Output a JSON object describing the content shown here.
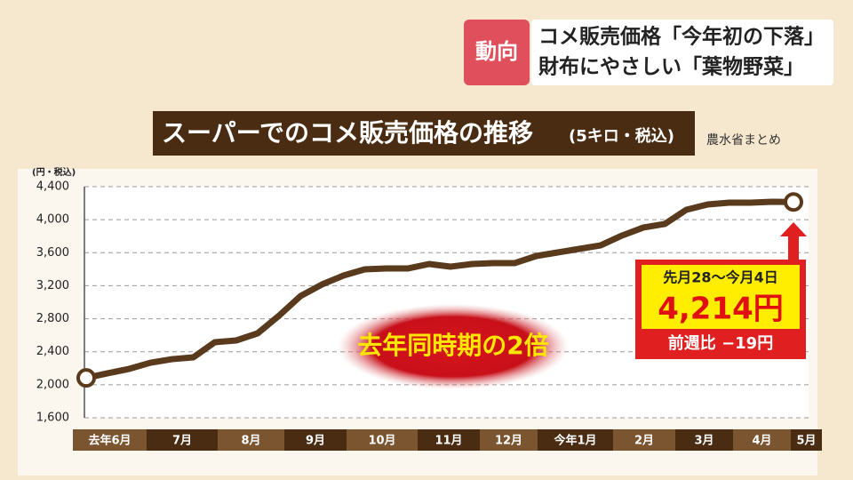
{
  "banner": {
    "tag": "動向",
    "line1": "コメ販売価格「今年初の下落」",
    "line2": "財布にやさしい「葉物野菜」"
  },
  "chart_data": {
    "type": "line",
    "title": "スーパーでのコメ販売価格の推移",
    "title_note": "(5キロ・税込)",
    "source": "農水省まとめ",
    "y_unit": "(円・税込)",
    "months": [
      "去年6月",
      "7月",
      "8月",
      "9月",
      "10月",
      "11月",
      "12月",
      "今年1月",
      "2月",
      "3月",
      "4月",
      "5月"
    ],
    "series": [
      {
        "color": "#5a3a1c",
        "values": [
          2083,
          2139,
          2192,
          2267,
          2310,
          2332,
          2515,
          2537,
          2623,
          2838,
          3075,
          3215,
          3323,
          3398,
          3409,
          3409,
          3463,
          3431,
          3463,
          3474,
          3474,
          3560,
          3603,
          3646,
          3689,
          3808,
          3905,
          3948,
          4120,
          4185,
          4206,
          4206,
          4217,
          4214
        ]
      }
    ],
    "ylim": [
      1600,
      4400
    ],
    "yticks": [
      {
        "value": 1600,
        "label": "1,600"
      },
      {
        "value": 2000,
        "label": "2,000"
      },
      {
        "value": 2400,
        "label": "2,400"
      },
      {
        "value": 2800,
        "label": "2,800"
      },
      {
        "value": 3200,
        "label": "3,200"
      },
      {
        "value": 3600,
        "label": "3,600"
      },
      {
        "value": 4000,
        "label": "4,000"
      },
      {
        "value": 4400,
        "label": "4,400"
      }
    ],
    "grid": true,
    "annotation": {
      "period": "先月28〜今月4日",
      "price_label": "4,214円",
      "change": "前週比 −19円"
    },
    "callout": "去年同時期の2倍"
  }
}
